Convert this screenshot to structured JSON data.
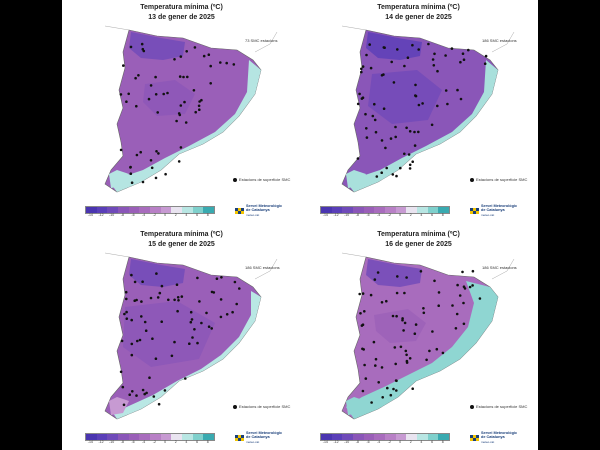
{
  "panels": [
    {
      "title": "Temperatura mínima (ºC)",
      "date": "13 de gener de 2025",
      "stations_text": "73 SMC estacions",
      "legend_note": "Estacions de superfície SMC",
      "ticks": [
        "-14",
        "-12",
        "-10",
        "-8",
        "-6",
        "-4",
        "-2",
        "0",
        "2",
        "4",
        "6",
        "8"
      ],
      "coast_fill": "#b5e5e2"
    },
    {
      "title": "Temperatura mínima (ºC)",
      "date": "14 de gener de 2025",
      "stations_text": "186 SMC estacions",
      "legend_note": "Estacions de superfície SMC",
      "ticks": [
        "-14",
        "-12",
        "-10",
        "-8",
        "-6",
        "-4",
        "-2",
        "0",
        "2",
        "4",
        "6",
        "8"
      ],
      "coast_fill": "#a9e0dc"
    },
    {
      "title": "Temperatura mínima (ºC)",
      "date": "15 de gener de 2025",
      "stations_text": "186 SMC estacions",
      "legend_note": "Estacions de superfície SMC",
      "ticks": [
        "-14",
        "-12",
        "-10",
        "-8",
        "-6",
        "-4",
        "-2",
        "0",
        "2",
        "4",
        "6",
        "8"
      ],
      "coast_fill": "#b9e7e4"
    },
    {
      "title": "Temperatura mínima (ºC)",
      "date": "16 de gener de 2025",
      "stations_text": "186 SMC estacions",
      "legend_note": "Estacions de superfície SMC",
      "ticks": [
        "-14",
        "-12",
        "-10",
        "-8",
        "-6",
        "-4",
        "-2",
        "0",
        "2",
        "4",
        "6",
        "8"
      ],
      "coast_fill": "#8fd6d2"
    }
  ],
  "logo": {
    "name_line1": "Servei Meteorològic",
    "name_line2": "de Catalunya",
    "sub": "meteo.cat"
  },
  "palette": [
    "#4a35b0",
    "#5a3fb8",
    "#6f4ab9",
    "#8a56b8",
    "#9a5fb8",
    "#a86cbd",
    "#b880c6",
    "#c79ad2",
    "#e9e4f0",
    "#b8e6e3",
    "#7fd0cc",
    "#39aab0"
  ]
}
